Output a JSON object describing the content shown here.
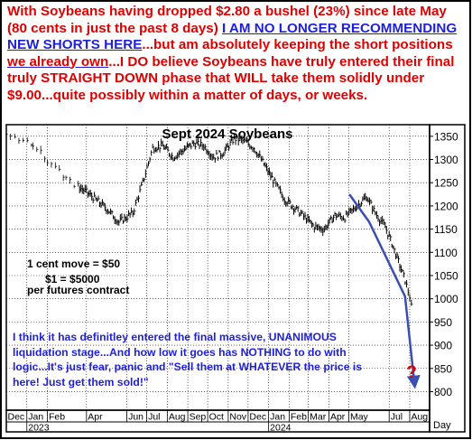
{
  "headline": {
    "p1": "With Soybeans having dropped $2.80 a bushel (23%) since late May (80 cents in just the past 8 days) ",
    "p2": "I AM NO LONGER RECOMMENDING NEW SHORTS HERE",
    "p3": "...but am absolutely keeping the short positions ",
    "p4": "we already own",
    "p5": "...I DO believe Soybeans have truly entered their final truly STRAIGHT DOWN phase that WILL take them solidly under $9.00...quite possibly within a matter of days, or weeks."
  },
  "chart_data": {
    "type": "ohlc",
    "title": "Sept 2024 Soybeans",
    "ylabel": "",
    "xlabel": "Day",
    "ylim": [
      760,
      1375
    ],
    "yticks": [
      800,
      850,
      900,
      950,
      1000,
      1050,
      1100,
      1150,
      1200,
      1250,
      1300,
      1350
    ],
    "ytick_labels": [
      "800",
      "850",
      "900",
      "950",
      "1000",
      "1050",
      "1100",
      "1150",
      "1200",
      "1250",
      "1300",
      "1350"
    ],
    "month_labels": [
      "Dec",
      "Jan",
      "Feb",
      "Apr",
      "Jun",
      "Jul",
      "Aug",
      "Sep",
      "Oct",
      "Nov",
      "Dec",
      "Jan",
      "Feb",
      "Mar",
      "Apr",
      "May",
      "Jul",
      "Aug"
    ],
    "year_labels": [
      "2023",
      "2024"
    ],
    "gridlines": true,
    "price_series": {
      "name": "Sept 2024 Soybeans",
      "color": "#000000",
      "x": [
        "2022-12-01",
        "2022-12-20",
        "2023-01-10",
        "2023-02-01",
        "2023-03-01",
        "2023-04-01",
        "2023-05-01",
        "2023-05-20",
        "2023-06-10",
        "2023-06-25",
        "2023-07-10",
        "2023-07-25",
        "2023-08-10",
        "2023-08-25",
        "2023-09-10",
        "2023-09-25",
        "2023-10-10",
        "2023-10-25",
        "2023-11-10",
        "2023-11-25",
        "2023-12-10",
        "2023-12-25",
        "2024-01-10",
        "2024-01-25",
        "2024-02-10",
        "2024-02-25",
        "2024-03-10",
        "2024-03-25",
        "2024-04-10",
        "2024-04-25",
        "2024-05-10",
        "2024-05-28",
        "2024-06-10",
        "2024-06-25",
        "2024-07-05",
        "2024-07-15",
        "2024-07-25",
        "2024-08-01",
        "2024-08-06"
      ],
      "y": [
        1355,
        1345,
        1330,
        1300,
        1260,
        1230,
        1195,
        1165,
        1185,
        1250,
        1325,
        1330,
        1305,
        1320,
        1335,
        1330,
        1305,
        1315,
        1345,
        1340,
        1325,
        1290,
        1250,
        1215,
        1195,
        1175,
        1155,
        1150,
        1180,
        1175,
        1195,
        1220,
        1185,
        1155,
        1120,
        1080,
        1040,
        1005,
        960
      ]
    },
    "trendline": {
      "name": "",
      "color": "#3a4fb0",
      "x": [
        "2024-05-02",
        "2024-06-01",
        "2024-07-25",
        "2024-08-08"
      ],
      "y": [
        1225,
        1165,
        1005,
        820
      ]
    },
    "annotations": {
      "contract_size": [
        "1 cent move = $50",
        "$1 = $5000",
        "per futures contract"
      ],
      "commentary": "I think it has definitley entered the final massive, UNANIMOUS liquidation stage...And how low it goes has NOTHING to do with logic...It's just fear, panic and \"Sell them at WHATEVER the price is here! Just get them sold!\"",
      "marker": "?"
    }
  },
  "colors": {
    "headline_red": "#e00000",
    "headline_blue": "#1f1fd8",
    "commentary_blue": "#1f1fd8",
    "trendline_blue": "#3a4fb0",
    "marker_red": "#e00000",
    "grid": "#000000"
  }
}
